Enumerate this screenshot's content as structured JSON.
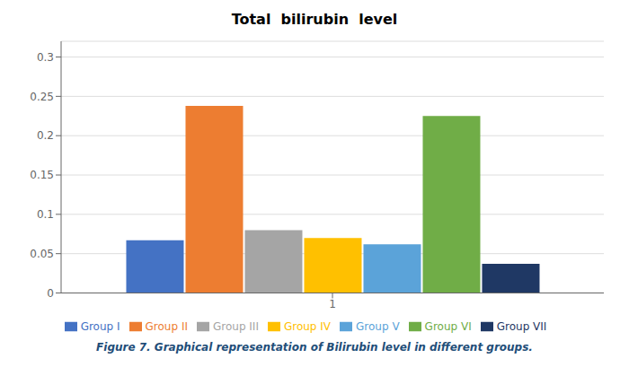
{
  "chart_data": {
    "type": "bar",
    "title": "Total  bilirubin  level",
    "caption": "Figure 7. Graphical representation of Bilirubin level in different groups.",
    "categories": [
      "1"
    ],
    "series": [
      {
        "name": "Group I",
        "color": "#4472C4",
        "values": [
          0.067
        ]
      },
      {
        "name": "Group II",
        "color": "#ED7D31",
        "values": [
          0.238
        ]
      },
      {
        "name": "Group III",
        "color": "#A5A5A5",
        "values": [
          0.08
        ]
      },
      {
        "name": "Group IV",
        "color": "#FFC000",
        "values": [
          0.07
        ]
      },
      {
        "name": "Group V",
        "color": "#5BA3D9",
        "values": [
          0.062
        ]
      },
      {
        "name": "Group VI",
        "color": "#70AD47",
        "values": [
          0.225
        ]
      },
      {
        "name": "Group VII",
        "color": "#1F3864",
        "values": [
          0.037
        ]
      }
    ],
    "ylim": [
      0,
      0.32
    ],
    "yticks": [
      0,
      0.05,
      0.1,
      0.15,
      0.2,
      0.25,
      0.3
    ],
    "grid": true,
    "legend": "bottom"
  }
}
